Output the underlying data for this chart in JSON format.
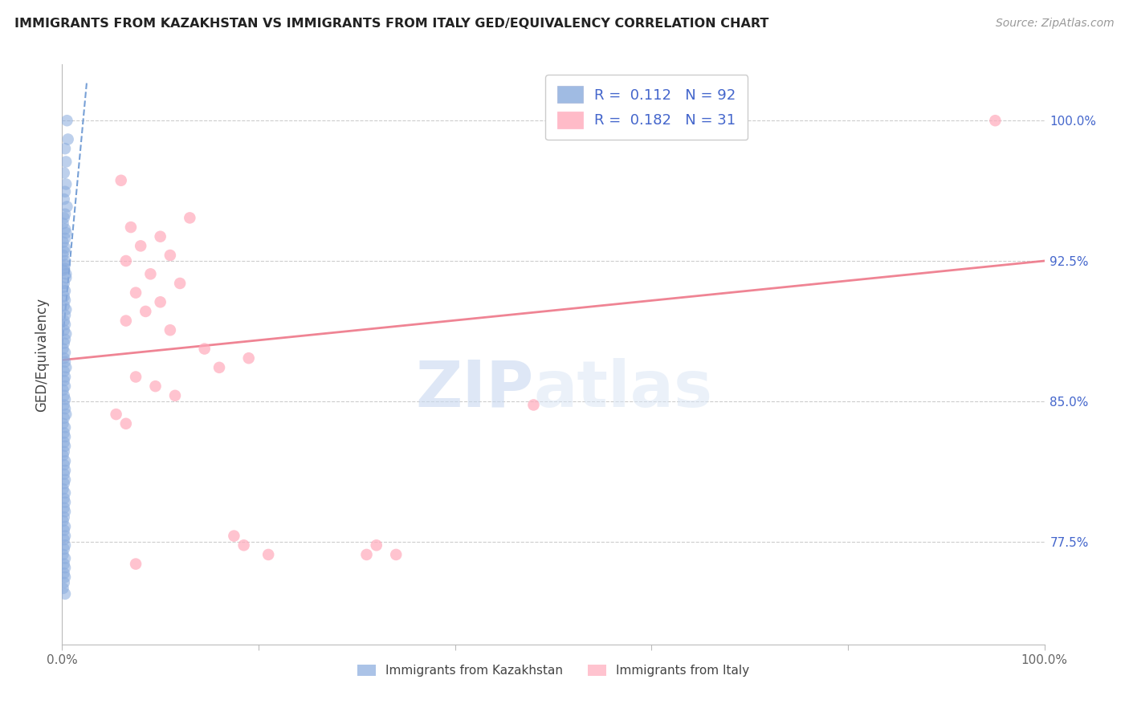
{
  "title": "IMMIGRANTS FROM KAZAKHSTAN VS IMMIGRANTS FROM ITALY GED/EQUIVALENCY CORRELATION CHART",
  "source": "Source: ZipAtlas.com",
  "ylabel": "GED/Equivalency",
  "watermark_zip": "ZIP",
  "watermark_atlas": "atlas",
  "legend1_label": "Immigrants from Kazakhstan",
  "legend2_label": "Immigrants from Italy",
  "legend1_R": "0.112",
  "legend1_N": "92",
  "legend2_R": "0.182",
  "legend2_N": "31",
  "color_kaz": "#88AADD",
  "color_italy": "#FFAABB",
  "color_kaz_line": "#5588CC",
  "color_italy_line": "#EE7788",
  "xmin": 0.0,
  "xmax": 1.0,
  "ymin": 0.72,
  "ymax": 1.03,
  "yticks": [
    0.775,
    0.85,
    0.925,
    1.0
  ],
  "ytick_labels": [
    "77.5%",
    "85.0%",
    "92.5%",
    "100.0%"
  ],
  "legend_text_color": "#4466CC",
  "kaz_x": [
    0.005,
    0.006,
    0.003,
    0.004,
    0.002,
    0.004,
    0.003,
    0.002,
    0.005,
    0.003,
    0.002,
    0.001,
    0.003,
    0.004,
    0.003,
    0.001,
    0.003,
    0.002,
    0.001,
    0.003,
    0.003,
    0.002,
    0.001,
    0.004,
    0.004,
    0.002,
    0.001,
    0.003,
    0.002,
    0.003,
    0.002,
    0.004,
    0.003,
    0.002,
    0.003,
    0.002,
    0.004,
    0.003,
    0.002,
    0.001,
    0.003,
    0.002,
    0.003,
    0.004,
    0.002,
    0.003,
    0.002,
    0.003,
    0.001,
    0.002,
    0.003,
    0.002,
    0.003,
    0.004,
    0.002,
    0.001,
    0.003,
    0.002,
    0.003,
    0.002,
    0.003,
    0.002,
    0.001,
    0.003,
    0.002,
    0.003,
    0.002,
    0.003,
    0.002,
    0.001,
    0.003,
    0.002,
    0.003,
    0.002,
    0.003,
    0.002,
    0.001,
    0.003,
    0.002,
    0.003,
    0.002,
    0.003,
    0.002,
    0.001,
    0.003,
    0.002,
    0.003,
    0.002,
    0.003,
    0.002,
    0.001,
    0.003
  ],
  "kaz_y": [
    1.0,
    0.99,
    0.985,
    0.978,
    0.972,
    0.966,
    0.962,
    0.958,
    0.954,
    0.95,
    0.948,
    0.945,
    0.942,
    0.94,
    0.937,
    0.935,
    0.932,
    0.93,
    0.928,
    0.925,
    0.923,
    0.921,
    0.92,
    0.918,
    0.916,
    0.913,
    0.911,
    0.909,
    0.906,
    0.904,
    0.901,
    0.899,
    0.896,
    0.893,
    0.891,
    0.888,
    0.886,
    0.883,
    0.881,
    0.878,
    0.876,
    0.873,
    0.871,
    0.868,
    0.866,
    0.863,
    0.861,
    0.858,
    0.856,
    0.853,
    0.851,
    0.848,
    0.846,
    0.843,
    0.841,
    0.838,
    0.836,
    0.833,
    0.831,
    0.828,
    0.826,
    0.823,
    0.821,
    0.818,
    0.816,
    0.813,
    0.811,
    0.808,
    0.806,
    0.803,
    0.801,
    0.798,
    0.796,
    0.793,
    0.791,
    0.788,
    0.786,
    0.783,
    0.781,
    0.778,
    0.776,
    0.773,
    0.771,
    0.768,
    0.766,
    0.763,
    0.761,
    0.758,
    0.756,
    0.753,
    0.75,
    0.747
  ],
  "italy_x": [
    0.95,
    0.06,
    0.13,
    0.07,
    0.1,
    0.08,
    0.11,
    0.065,
    0.09,
    0.12,
    0.075,
    0.1,
    0.085,
    0.065,
    0.11,
    0.145,
    0.19,
    0.16,
    0.075,
    0.095,
    0.115,
    0.48,
    0.055,
    0.065,
    0.175,
    0.185,
    0.21,
    0.34,
    0.075,
    0.31,
    0.32
  ],
  "italy_y": [
    1.0,
    0.968,
    0.948,
    0.943,
    0.938,
    0.933,
    0.928,
    0.925,
    0.918,
    0.913,
    0.908,
    0.903,
    0.898,
    0.893,
    0.888,
    0.878,
    0.873,
    0.868,
    0.863,
    0.858,
    0.853,
    0.848,
    0.843,
    0.838,
    0.778,
    0.773,
    0.768,
    0.768,
    0.763,
    0.768,
    0.773
  ],
  "italy_line_x0": 0.0,
  "italy_line_x1": 1.0,
  "italy_line_y0": 0.872,
  "italy_line_y1": 0.925,
  "kaz_line_x0": 0.0,
  "kaz_line_x1": 0.025,
  "kaz_line_y0": 0.88,
  "kaz_line_y1": 1.02
}
